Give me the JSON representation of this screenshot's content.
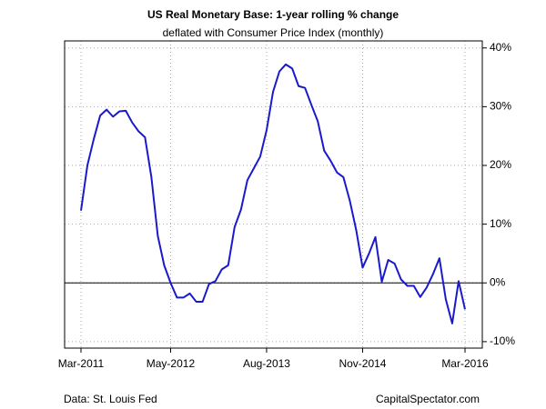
{
  "chart_data": {
    "type": "line",
    "title": "US Real Monetary Base: 1-year rolling % change",
    "subtitle": "deflated with Consumer Price Index (monthly)",
    "source": "Data: St. Louis Fed",
    "credit": "CapitalSpectator.com",
    "categories": [
      "Mar-2011",
      null,
      null,
      null,
      null,
      null,
      null,
      null,
      null,
      null,
      null,
      null,
      null,
      null,
      "May-2012",
      null,
      null,
      null,
      null,
      null,
      null,
      null,
      null,
      null,
      null,
      null,
      null,
      null,
      null,
      "Aug-2013",
      null,
      null,
      null,
      null,
      null,
      null,
      null,
      null,
      null,
      null,
      null,
      null,
      null,
      null,
      "Nov-2014",
      null,
      null,
      null,
      null,
      null,
      null,
      null,
      null,
      null,
      null,
      null,
      null,
      null,
      null,
      null,
      "Mar-2016"
    ],
    "series": [
      {
        "name": "US Real Monetary Base",
        "color": "#1a1acd",
        "values": [
          12.3,
          20,
          24.5,
          28.5,
          29.5,
          28.3,
          29.2,
          29.3,
          27.3,
          25.8,
          24.8,
          18,
          8,
          3,
          0,
          -2.5,
          -2.5,
          -1.8,
          -3.2,
          -3.2,
          -0.2,
          0.3,
          2.3,
          3,
          9.5,
          12.5,
          17.5,
          19.5,
          21.5,
          26,
          32.5,
          36,
          37.2,
          36.5,
          33.5,
          33.2,
          30.3,
          27.5,
          22.5,
          20.8,
          18.8,
          18,
          14,
          9,
          2.6,
          5,
          7.8,
          0.2,
          3.9,
          3.3,
          0.6,
          -0.5,
          -0.5,
          -2.4,
          -0.8,
          1.5,
          4.2,
          -2.8,
          -6.9,
          0.3,
          -4.5
        ]
      }
    ],
    "ylim": [
      -11.1,
      41.2
    ],
    "yticks": [
      {
        "value": -10,
        "label": "-10%"
      },
      {
        "value": 0,
        "label": "0%"
      },
      {
        "value": 10,
        "label": "10%"
      },
      {
        "value": 20,
        "label": "20%"
      },
      {
        "value": 30,
        "label": "30%"
      },
      {
        "value": 40,
        "label": "40%"
      }
    ],
    "y_axis_side": "right",
    "reference_line": 0,
    "grid": true
  }
}
